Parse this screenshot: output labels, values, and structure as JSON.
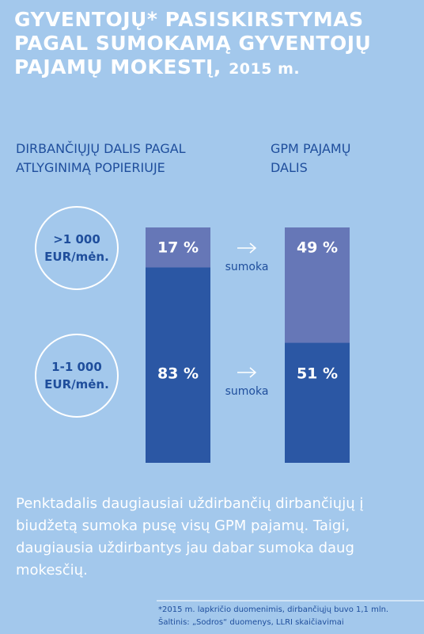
{
  "chart_data": {
    "type": "stacked-bar",
    "title_lines": [
      "GYVENTOJŲ* PASISKIRSTYMAS",
      "PAGAL SUMOKAMĄ GYVENTOJŲ",
      "PAJAMŲ MOKESTĮ,"
    ],
    "title_year": "2015 m.",
    "categories": [
      "DIRBANČIŲJŲ DALIS PAGAL ATLYGINIMĄ POPIERIUJE",
      "GPM PAJAMŲ DALIS"
    ],
    "series": [
      {
        "name": "1-1 000 EUR/mėn.",
        "color": "#2b57a4",
        "values": [
          83,
          51
        ],
        "value_labels": [
          "83 %",
          "51 %"
        ]
      },
      {
        "name": ">1 000 EUR/mėn.",
        "color": "#6677b7",
        "values": [
          17,
          49
        ],
        "value_labels": [
          "17 %",
          "49 %"
        ]
      }
    ],
    "arrow_labels": [
      "sumoka",
      "sumoka"
    ],
    "ylim": [
      0,
      100
    ],
    "description": "Penktadalis daugiausiai uždirbančių dirbančiųjų į biudžetą sumoka pusę visų GPM pajamų. Taigi, daugiausia uždirbantys jau dabar sumoka daug mokesčių.",
    "footnotes": [
      "*2015 m. lapkričio duomenimis, dirbančiųjų buvo 1,1 mln.",
      "Šaltinis: „Sodros“ duomenys, LLRI skaičiavimai"
    ]
  }
}
